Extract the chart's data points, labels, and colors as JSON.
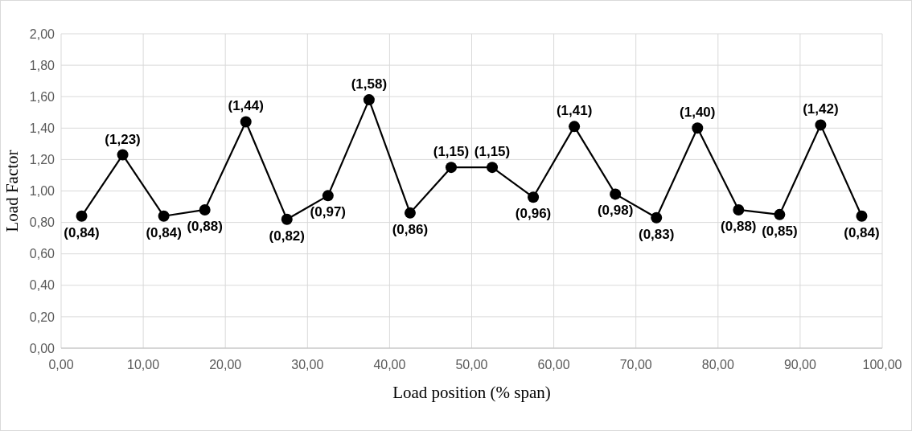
{
  "chart_data": {
    "type": "line",
    "xlabel": "Load position (% span)",
    "ylabel": "Load Factor",
    "x": [
      2.5,
      7.5,
      12.5,
      17.5,
      22.5,
      27.5,
      32.5,
      37.5,
      42.5,
      47.5,
      52.5,
      57.5,
      62.5,
      67.5,
      72.5,
      77.5,
      82.5,
      87.5,
      92.5,
      97.5
    ],
    "series": [
      {
        "color": "#000000",
        "values": [
          0.84,
          1.23,
          0.84,
          0.88,
          1.44,
          0.82,
          0.97,
          1.58,
          0.86,
          1.15,
          1.15,
          0.96,
          1.41,
          0.98,
          0.83,
          1.4,
          0.88,
          0.85,
          1.42,
          0.84
        ],
        "value_labels": [
          "(0,84)",
          "(1,23)",
          "(0,84)",
          "(0,88)",
          "(1,44)",
          "(0,82)",
          "(0,97)",
          "(1,58)",
          "(0,86)",
          "(1,15)",
          "(1,15)",
          "(0,96)",
          "(1,41)",
          "(0,98)",
          "(0,83)",
          "(1,40)",
          "(0,88)",
          "(0,85)",
          "(1,42)",
          "(0,84)"
        ]
      }
    ],
    "xlim": [
      0,
      100
    ],
    "xticks": [
      {
        "value": 0,
        "label": "0,00"
      },
      {
        "value": 10,
        "label": "10,00"
      },
      {
        "value": 20,
        "label": "20,00"
      },
      {
        "value": 30,
        "label": "30,00"
      },
      {
        "value": 40,
        "label": "40,00"
      },
      {
        "value": 50,
        "label": "50,00"
      },
      {
        "value": 60,
        "label": "60,00"
      },
      {
        "value": 70,
        "label": "70,00"
      },
      {
        "value": 80,
        "label": "80,00"
      },
      {
        "value": 90,
        "label": "90,00"
      },
      {
        "value": 100,
        "label": "100,00"
      }
    ],
    "ylim": [
      0,
      2
    ],
    "yticks": [
      {
        "value": 0,
        "label": "0,00"
      },
      {
        "value": 0.2,
        "label": "0,20"
      },
      {
        "value": 0.4,
        "label": "0,40"
      },
      {
        "value": 0.6,
        "label": "0,60"
      },
      {
        "value": 0.8,
        "label": "0,80"
      },
      {
        "value": 1,
        "label": "1,00"
      },
      {
        "value": 1.2,
        "label": "1,20"
      },
      {
        "value": 1.4,
        "label": "1,40"
      },
      {
        "value": 1.6,
        "label": "1,60"
      },
      {
        "value": 1.8,
        "label": "1,80"
      },
      {
        "value": 2,
        "label": "2,00"
      }
    ],
    "grid": true,
    "marker": "circle",
    "line_style": "solid"
  }
}
